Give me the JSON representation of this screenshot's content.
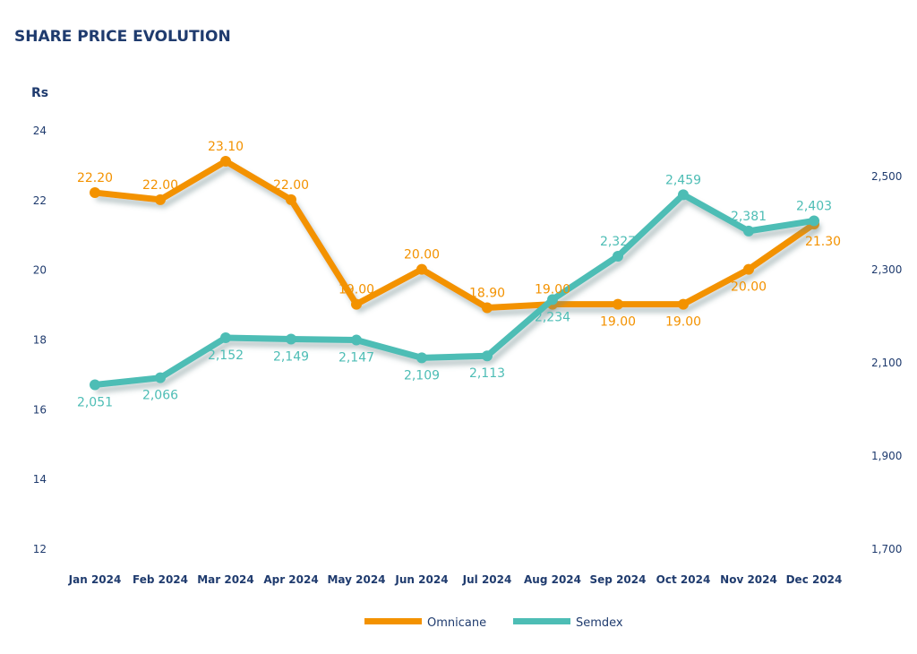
{
  "chart_data": {
    "type": "line",
    "title": "SHARE PRICE EVOLUTION",
    "ylabel": "Rs",
    "categories": [
      "Jan 2024",
      "Feb 2024",
      "Mar 2024",
      "Apr 2024",
      "May 2024",
      "Jun 2024",
      "Jul 2024",
      "Aug 2024",
      "Sep 2024",
      "Oct 2024",
      "Nov 2024",
      "Dec 2024"
    ],
    "ylim": [
      12,
      24
    ],
    "y_ticks": [
      "12",
      "14",
      "16",
      "18",
      "20",
      "22",
      "24"
    ],
    "y2lim": [
      1700,
      2500
    ],
    "y2_ticks": [
      "1,700",
      "1,900",
      "2,100",
      "2,300",
      "2,500"
    ],
    "grid": false,
    "legend_position": "bottom-center",
    "series": [
      {
        "name": "Omnicane",
        "axis": "left",
        "color": "#F39200",
        "values": [
          22.2,
          22.0,
          23.1,
          22.0,
          19.0,
          20.0,
          18.9,
          19.0,
          19.0,
          19.0,
          20.0,
          21.3
        ],
        "labels": [
          "22.20",
          "22.00",
          "23.10",
          "22.00",
          "19.00",
          "20.00",
          "18.90",
          "19.00",
          "19.00",
          "19.00",
          "20.00",
          "21.30"
        ]
      },
      {
        "name": "Semdex",
        "axis": "right",
        "color": "#4DBDB5",
        "values": [
          2051,
          2066,
          2152,
          2149,
          2147,
          2109,
          2113,
          2234,
          2327,
          2459,
          2381,
          2403
        ],
        "labels": [
          "2,051",
          "2,066",
          "2,152",
          "2,149",
          "2,147",
          "2,109",
          "2,113",
          "2,234",
          "2,327",
          "2,459",
          "2,381",
          "2,403"
        ]
      }
    ]
  },
  "colors": {
    "text": "#1F3B6E"
  }
}
